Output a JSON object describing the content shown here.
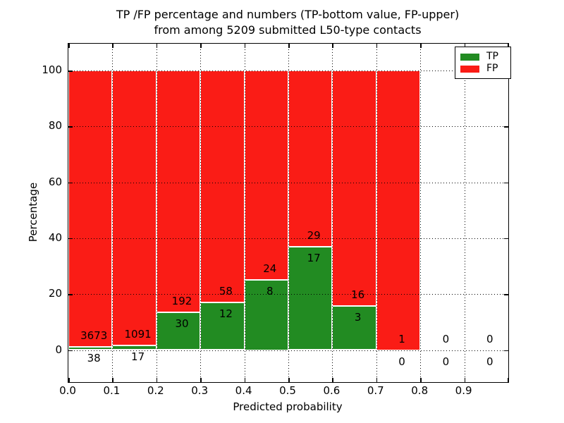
{
  "figure": {
    "title_line1": "TP /FP percentage and numbers (TP-bottom value, FP-upper)",
    "title_line2": "from among 5209 submitted L50-type contacts",
    "xlabel": "Predicted probability",
    "ylabel": "Percentage"
  },
  "colors": {
    "tp_green": "#228b22",
    "fp_red": "#fa1c16",
    "grid": "#000000",
    "background": "#ffffff"
  },
  "legend": {
    "items": [
      {
        "label": "TP",
        "color_key": "tp_green"
      },
      {
        "label": "FP",
        "color_key": "fp_red"
      }
    ]
  },
  "chart_data": {
    "type": "bar",
    "stacked": true,
    "unit": "percent",
    "title": "TP /FP percentage and numbers (TP-bottom value, FP-upper) from among 5209 submitted L50-type contacts",
    "xlabel": "Predicted probability",
    "ylabel": "Percentage",
    "total_submitted_contacts": 5209,
    "x_tick_labels": [
      "0.0",
      "0.1",
      "0.2",
      "0.3",
      "0.4",
      "0.5",
      "0.6",
      "0.7",
      "0.8",
      "0.9"
    ],
    "y_ticks": [
      0,
      20,
      40,
      60,
      80,
      100
    ],
    "xlim": [
      0.0,
      1.0
    ],
    "ylim": [
      -11.5,
      109.6
    ],
    "grid": "dotted-on-top",
    "legend_position": "upper-right",
    "series": [
      {
        "name": "TP",
        "color": "#228b22"
      },
      {
        "name": "FP",
        "color": "#fa1c16"
      }
    ],
    "bins": [
      {
        "x_range": [
          0.0,
          0.1
        ],
        "tp_count": 38,
        "fp_count": 3673,
        "tp_pct": 1.02,
        "fp_pct": 98.98,
        "has_bar": true
      },
      {
        "x_range": [
          0.1,
          0.2
        ],
        "tp_count": 17,
        "fp_count": 1091,
        "tp_pct": 1.53,
        "fp_pct": 98.47,
        "has_bar": true
      },
      {
        "x_range": [
          0.2,
          0.3
        ],
        "tp_count": 30,
        "fp_count": 192,
        "tp_pct": 13.51,
        "fp_pct": 86.49,
        "has_bar": true
      },
      {
        "x_range": [
          0.3,
          0.4
        ],
        "tp_count": 12,
        "fp_count": 58,
        "tp_pct": 17.14,
        "fp_pct": 82.86,
        "has_bar": true
      },
      {
        "x_range": [
          0.4,
          0.5
        ],
        "tp_count": 8,
        "fp_count": 24,
        "tp_pct": 25.0,
        "fp_pct": 75.0,
        "has_bar": true
      },
      {
        "x_range": [
          0.5,
          0.6
        ],
        "tp_count": 17,
        "fp_count": 29,
        "tp_pct": 36.96,
        "fp_pct": 63.04,
        "has_bar": true
      },
      {
        "x_range": [
          0.6,
          0.7
        ],
        "tp_count": 3,
        "fp_count": 16,
        "tp_pct": 15.79,
        "fp_pct": 84.21,
        "has_bar": true
      },
      {
        "x_range": [
          0.7,
          0.8
        ],
        "tp_count": 0,
        "fp_count": 1,
        "tp_pct": 0.0,
        "fp_pct": 100.0,
        "has_bar": true
      },
      {
        "x_range": [
          0.8,
          0.9
        ],
        "tp_count": 0,
        "fp_count": 0,
        "tp_pct": 0.0,
        "fp_pct": 0.0,
        "has_bar": false
      },
      {
        "x_range": [
          0.9,
          1.0
        ],
        "tp_count": 0,
        "fp_count": 0,
        "tp_pct": 0.0,
        "fp_pct": 0.0,
        "has_bar": false
      }
    ]
  }
}
